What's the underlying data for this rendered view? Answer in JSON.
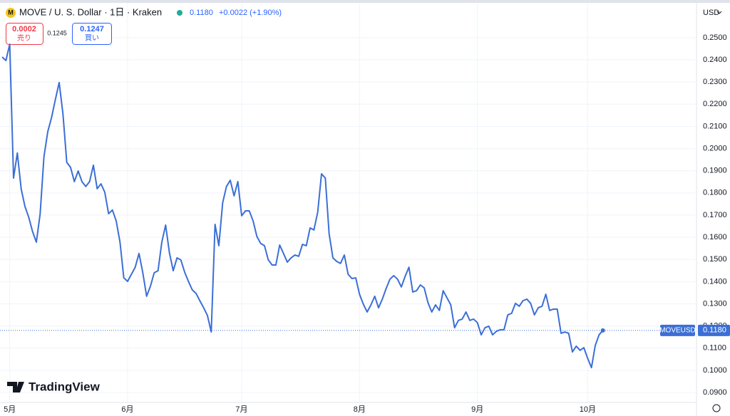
{
  "ui": {
    "sell_value": "0.0002",
    "sell_label": "売り",
    "spread": "0.1245",
    "buy_value": "0.1247",
    "buy_label": "買い",
    "change": "+0.0022 (+1.90%)",
    "currency": "USD",
    "brand": "TradingView"
  },
  "chart_data": {
    "type": "line",
    "title": "MOVE / U. S. Dollar · 1日 · Kraken",
    "last_price": {
      "value": 0.118,
      "label": "0.1180"
    },
    "xlim": [
      -0.56,
      182.25
    ],
    "ylim": [
      0.0855,
      0.267
    ],
    "grid": true,
    "xticks": [
      {
        "value": 2,
        "label": "5月"
      },
      {
        "value": 33,
        "label": "6月"
      },
      {
        "value": 63,
        "label": "7月"
      },
      {
        "value": 94,
        "label": "8月"
      },
      {
        "value": 125,
        "label": "9月"
      },
      {
        "value": 154,
        "label": "10月"
      }
    ],
    "yticks": [
      {
        "value": 0.09,
        "label": "0.0900"
      },
      {
        "value": 0.1,
        "label": "0.1000"
      },
      {
        "value": 0.11,
        "label": "0.1100"
      },
      {
        "value": 0.12,
        "label": "0.1200"
      },
      {
        "value": 0.13,
        "label": "0.1300"
      },
      {
        "value": 0.14,
        "label": "0.1400"
      },
      {
        "value": 0.15,
        "label": "0.1500"
      },
      {
        "value": 0.16,
        "label": "0.1600"
      },
      {
        "value": 0.17,
        "label": "0.1700"
      },
      {
        "value": 0.18,
        "label": "0.1800"
      },
      {
        "value": 0.19,
        "label": "0.1900"
      },
      {
        "value": 0.2,
        "label": "0.2000"
      },
      {
        "value": 0.21,
        "label": "0.2100"
      },
      {
        "value": 0.22,
        "label": "0.2200"
      },
      {
        "value": 0.23,
        "label": "0.2300"
      },
      {
        "value": 0.24,
        "label": "0.2400"
      },
      {
        "value": 0.25,
        "label": "0.2500"
      }
    ],
    "series": [
      {
        "name": "MOVEUSD",
        "color": "#3b6fd6",
        "values": [
          0.2413,
          0.2397,
          0.2471,
          0.1867,
          0.198,
          0.1819,
          0.1739,
          0.169,
          0.1626,
          0.1578,
          0.1706,
          0.1963,
          0.2076,
          0.214,
          0.2221,
          0.2298,
          0.2156,
          0.1938,
          0.1915,
          0.1851,
          0.1899,
          0.1851,
          0.1829,
          0.1851,
          0.1925,
          0.1819,
          0.1841,
          0.1803,
          0.1706,
          0.1723,
          0.1674,
          0.1578,
          0.1417,
          0.1401,
          0.1433,
          0.1465,
          0.1527,
          0.144,
          0.1334,
          0.1379,
          0.144,
          0.1449,
          0.1578,
          0.1655,
          0.153,
          0.1449,
          0.1507,
          0.1498,
          0.1443,
          0.1401,
          0.1363,
          0.1347,
          0.1314,
          0.1282,
          0.1247,
          0.1173,
          0.1658,
          0.1562,
          0.1755,
          0.1829,
          0.1857,
          0.1787,
          0.1851,
          0.1697,
          0.1719,
          0.1719,
          0.1674,
          0.1604,
          0.1572,
          0.1562,
          0.1498,
          0.1475,
          0.1475,
          0.1565,
          0.1527,
          0.1488,
          0.1507,
          0.152,
          0.1514,
          0.1568,
          0.1562,
          0.1642,
          0.1633,
          0.1713,
          0.1886,
          0.1867,
          0.1616,
          0.1507,
          0.1491,
          0.1482,
          0.152,
          0.1433,
          0.1414,
          0.1417,
          0.1343,
          0.1298,
          0.1263,
          0.1295,
          0.1334,
          0.1282,
          0.1321,
          0.1369,
          0.1411,
          0.1427,
          0.1411,
          0.1376,
          0.1424,
          0.1465,
          0.1353,
          0.1359,
          0.1385,
          0.1372,
          0.1305,
          0.1263,
          0.1295,
          0.127,
          0.1359,
          0.1327,
          0.1295,
          0.1192,
          0.1225,
          0.1231,
          0.1263,
          0.1225,
          0.1231,
          0.1215,
          0.116,
          0.1192,
          0.1199,
          0.116,
          0.1176,
          0.1183,
          0.1183,
          0.125,
          0.1257,
          0.1302,
          0.1289,
          0.1314,
          0.1321,
          0.1302,
          0.125,
          0.1282,
          0.1289,
          0.1343,
          0.127,
          0.1276,
          0.1276,
          0.1167,
          0.1173,
          0.1167,
          0.1083,
          0.1109,
          0.109,
          0.1102,
          0.1054,
          0.1012,
          0.1112,
          0.116,
          0.118
        ]
      }
    ]
  }
}
